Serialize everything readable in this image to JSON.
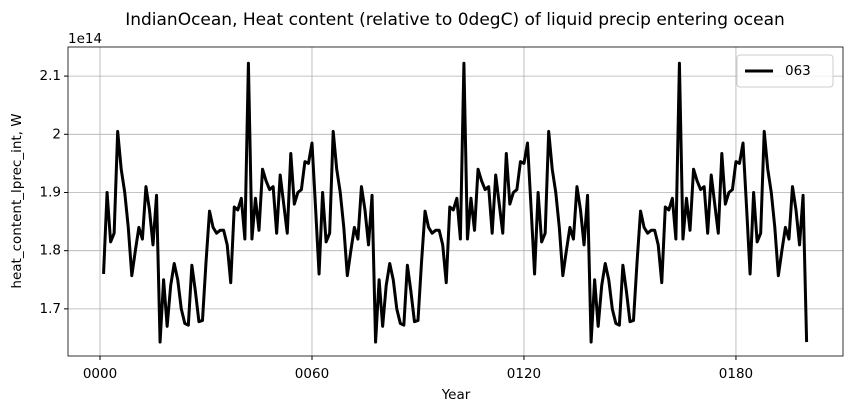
{
  "chart_data": {
    "type": "line",
    "title": "IndianOcean, Heat content (relative to 0degC) of liquid precip entering ocean",
    "xlabel": "Year",
    "ylabel": "heat_content_lprec_int, W",
    "offset_label": "1e14",
    "x": [
      1,
      2,
      3,
      4,
      5,
      6,
      7,
      8,
      9,
      10,
      11,
      12,
      13,
      14,
      15,
      16,
      17,
      18,
      19,
      20,
      21,
      22,
      23,
      24,
      25,
      26,
      27,
      28,
      29,
      30,
      31,
      32,
      33,
      34,
      35,
      36,
      37,
      38,
      39,
      40,
      41,
      42,
      43,
      44,
      45,
      46,
      47,
      48,
      49,
      50,
      51,
      52,
      53,
      54,
      55,
      56,
      57,
      58,
      59,
      60,
      61,
      62,
      63,
      64,
      65,
      66,
      67,
      68,
      69,
      70,
      71,
      72,
      73,
      74,
      75,
      76,
      77,
      78,
      79,
      80,
      81,
      82,
      83,
      84,
      85,
      86,
      87,
      88,
      89,
      90,
      91,
      92,
      93,
      94,
      95,
      96,
      97,
      98,
      99,
      100,
      101,
      102,
      103,
      104,
      105,
      106,
      107,
      108,
      109,
      110,
      111,
      112,
      113,
      114,
      115,
      116,
      117,
      118,
      119,
      120,
      121,
      122,
      123,
      124,
      125,
      126,
      127,
      128,
      129,
      130,
      131,
      132,
      133,
      134,
      135,
      136,
      137,
      138,
      139,
      140,
      141,
      142,
      143,
      144,
      145,
      146,
      147,
      148,
      149,
      150,
      151,
      152,
      153,
      154,
      155,
      156,
      157,
      158,
      159,
      160,
      161,
      162,
      163,
      164,
      165,
      166,
      167,
      168,
      169,
      170,
      171,
      172,
      173,
      174,
      175,
      176,
      177,
      178,
      179,
      180,
      181,
      182,
      183,
      184,
      185,
      186,
      187,
      188,
      189,
      190,
      191,
      192,
      193,
      194,
      195,
      196,
      197,
      198,
      199,
      200
    ],
    "series": [
      {
        "name": "063",
        "color": "#000000",
        "values": [
          1.76,
          1.9,
          1.815,
          1.83,
          2.005,
          1.94,
          1.9,
          1.84,
          1.757,
          1.8,
          1.84,
          1.82,
          1.91,
          1.87,
          1.81,
          1.895,
          1.643,
          1.75,
          1.67,
          1.74,
          1.778,
          1.75,
          1.7,
          1.675,
          1.672,
          1.775,
          1.73,
          1.678,
          1.68,
          1.78,
          1.868,
          1.84,
          1.83,
          1.835,
          1.835,
          1.81,
          1.745,
          1.875,
          1.87,
          1.89,
          1.82,
          2.122,
          1.82,
          1.89,
          1.835,
          1.94,
          1.92,
          1.905,
          1.91,
          1.83,
          1.93,
          1.88,
          1.83,
          1.967,
          1.88,
          1.9,
          1.905,
          1.953,
          1.95,
          1.985,
          1.875,
          1.76,
          1.9,
          1.815,
          1.83,
          2.005,
          1.94,
          1.9,
          1.84,
          1.757,
          1.8,
          1.84,
          1.82,
          1.91,
          1.87,
          1.81,
          1.895,
          1.643,
          1.75,
          1.67,
          1.74,
          1.778,
          1.75,
          1.7,
          1.675,
          1.672,
          1.775,
          1.73,
          1.678,
          1.68,
          1.78,
          1.868,
          1.84,
          1.83,
          1.835,
          1.835,
          1.81,
          1.745,
          1.875,
          1.87,
          1.89,
          1.82,
          2.122,
          1.82,
          1.89,
          1.835,
          1.94,
          1.92,
          1.905,
          1.91,
          1.83,
          1.93,
          1.88,
          1.83,
          1.967,
          1.88,
          1.9,
          1.905,
          1.953,
          1.95,
          1.985,
          1.875,
          1.76,
          1.9,
          1.815,
          1.83,
          2.005,
          1.94,
          1.9,
          1.84,
          1.757,
          1.8,
          1.84,
          1.82,
          1.91,
          1.87,
          1.81,
          1.895,
          1.643,
          1.75,
          1.67,
          1.74,
          1.778,
          1.75,
          1.7,
          1.675,
          1.672,
          1.775,
          1.73,
          1.678,
          1.68,
          1.78,
          1.868,
          1.84,
          1.83,
          1.835,
          1.835,
          1.81,
          1.745,
          1.875,
          1.87,
          1.89,
          1.82,
          2.122,
          1.82,
          1.89,
          1.835,
          1.94,
          1.92,
          1.905,
          1.91,
          1.83,
          1.93,
          1.88,
          1.83,
          1.967,
          1.88,
          1.9,
          1.905,
          1.953,
          1.95,
          1.985,
          1.875,
          1.76,
          1.9,
          1.815,
          1.83,
          2.005,
          1.94,
          1.9,
          1.84,
          1.757,
          1.8,
          1.84,
          1.82,
          1.91,
          1.87,
          1.81,
          1.895,
          1.643
        ]
      }
    ],
    "xlim": [
      -9.06,
      210.3
    ],
    "ylim": [
      1.619,
      2.15
    ],
    "xticks": [
      {
        "value": 0,
        "label": "0000"
      },
      {
        "value": 60,
        "label": "0060"
      },
      {
        "value": 120,
        "label": "0120"
      },
      {
        "value": 180,
        "label": "0180"
      }
    ],
    "yticks": [
      1.7,
      1.8,
      1.9,
      2.0,
      2.1
    ],
    "grid": true,
    "legend": "upper right"
  }
}
